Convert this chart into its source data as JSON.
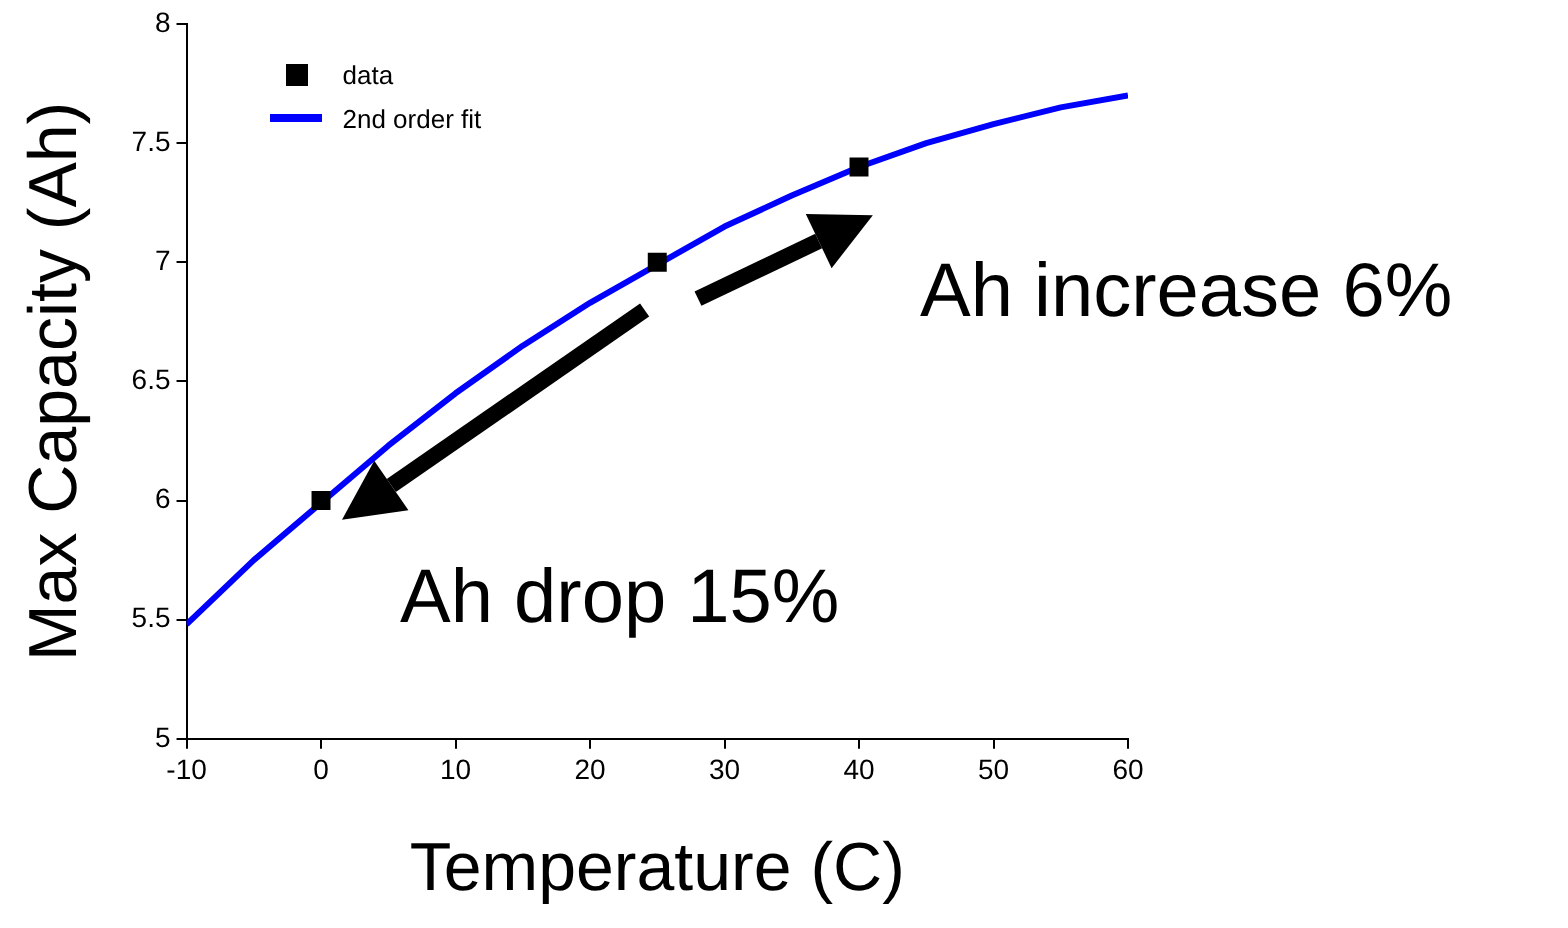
{
  "chart_data": {
    "type": "scatter",
    "xlabel": "Temperature (C)",
    "ylabel": "Max Capacity (Ah)",
    "xlim": [
      -10,
      60
    ],
    "xticks": [
      -10,
      0,
      10,
      20,
      30,
      40,
      50,
      60
    ],
    "ylim": [
      5,
      8
    ],
    "yticks": [
      5,
      5.5,
      6,
      6.5,
      7,
      7.5,
      8
    ],
    "grid": false,
    "legend": "top left",
    "series": [
      {
        "name": "data",
        "marker": "square",
        "color": "#000000",
        "x": [
          0,
          25,
          40
        ],
        "values": [
          6,
          7,
          7.4
        ]
      },
      {
        "name": "2nd order fit",
        "type": "line",
        "marker": "none",
        "color": "#0000ff",
        "x": [
          -10,
          -5,
          5,
          10,
          15,
          20,
          30,
          35,
          40,
          45,
          50,
          55,
          60
        ],
        "values": [
          5.48,
          5.75,
          6.23,
          6.45,
          6.65,
          6.83,
          7.15,
          7.28,
          7.4,
          7.5,
          7.58,
          7.65,
          7.7
        ]
      }
    ],
    "annotations": [
      "Ah increase 6%",
      "Ah drop 15%"
    ]
  }
}
